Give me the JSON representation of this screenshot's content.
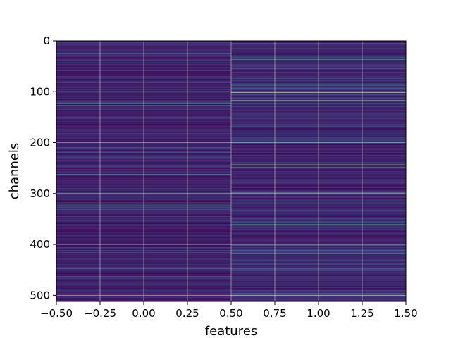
{
  "chart_data": {
    "type": "heatmap",
    "title": "",
    "xlabel": "features",
    "ylabel": "channels",
    "xlim": [
      -0.5,
      1.5
    ],
    "ylim": [
      512,
      0
    ],
    "y_inverted": true,
    "colormap": "viridis",
    "grid": true,
    "x_ticks": [
      -0.5,
      -0.25,
      0.0,
      0.25,
      0.5,
      0.75,
      1.0,
      1.25,
      1.5
    ],
    "x_tick_labels": [
      "−0.50",
      "−0.25",
      "0.00",
      "0.25",
      "0.50",
      "0.75",
      "1.00",
      "1.25",
      "1.50"
    ],
    "y_ticks": [
      0,
      100,
      200,
      300,
      400,
      500
    ],
    "y_tick_labels": [
      "0",
      "100",
      "200",
      "300",
      "400",
      "500"
    ],
    "n_rows": 512,
    "n_cols": 2,
    "highlight_rows": {
      "col0": [
        {
          "row": 24,
          "value": 0.45
        },
        {
          "row": 122,
          "value": 0.5
        },
        {
          "row": 126,
          "value": 0.42
        },
        {
          "row": 262,
          "value": 0.55
        },
        {
          "row": 290,
          "value": 0.38
        },
        {
          "row": 320,
          "value": 0.65
        },
        {
          "row": 322,
          "value": 0.55
        },
        {
          "row": 412,
          "value": 0.4
        },
        {
          "row": 462,
          "value": 0.35
        }
      ],
      "col1": [
        {
          "row": 33,
          "value": 0.55
        },
        {
          "row": 36,
          "value": 0.6
        },
        {
          "row": 87,
          "value": 0.45
        },
        {
          "row": 101,
          "value": 0.9
        },
        {
          "row": 117,
          "value": 0.85
        },
        {
          "row": 142,
          "value": 0.45
        },
        {
          "row": 198,
          "value": 0.6
        },
        {
          "row": 243,
          "value": 0.85
        },
        {
          "row": 248,
          "value": 0.5
        },
        {
          "row": 298,
          "value": 0.55
        },
        {
          "row": 314,
          "value": 0.45
        },
        {
          "row": 357,
          "value": 0.75
        },
        {
          "row": 360,
          "value": 0.5
        },
        {
          "row": 402,
          "value": 0.45
        },
        {
          "row": 418,
          "value": 0.55
        },
        {
          "row": 496,
          "value": 0.45
        },
        {
          "row": 500,
          "value": 0.5
        }
      ]
    }
  }
}
